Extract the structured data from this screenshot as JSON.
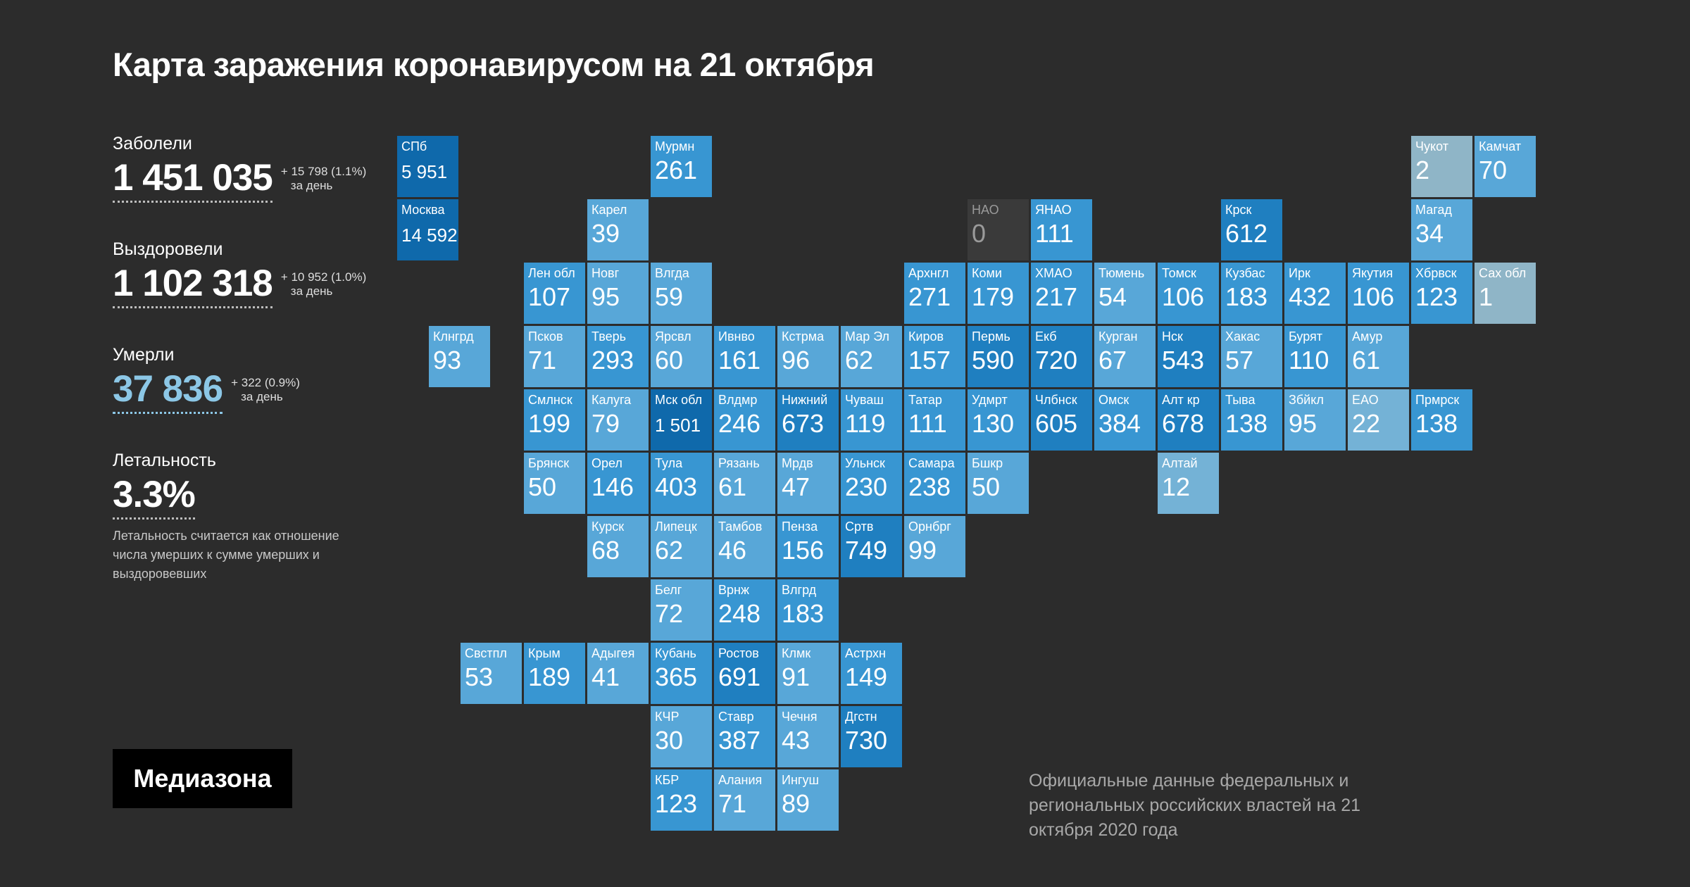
{
  "title": "Карта заражения коронавирусом на 21 октября",
  "stats": {
    "infected": {
      "label": "Заболели",
      "value": "1 451 035",
      "delta": "+ 15 798 (1.1%)",
      "per_day": "за день"
    },
    "recovered": {
      "label": "Выздоровели",
      "value": "1 102 318",
      "delta": "+ 10 952 (1.0%)",
      "per_day": "за день"
    },
    "deaths": {
      "label": "Умерли",
      "value": "37 836",
      "delta": "+ 322 (0.9%)",
      "per_day": "за день"
    },
    "lethality": {
      "label": "Летальность",
      "value": "3.3%"
    },
    "note": "Летальность считается как отношение числа умерших к сумме умерших и выздоровевших"
  },
  "logo": "Медиазона",
  "source": "Официальные данные федеральных и региональных российских властей на 21 октября 2020 года",
  "colors": {
    "background": "#2c2c2c",
    "scale": [
      "#8fb5c7",
      "#74b2d6",
      "#58a7d8",
      "#3896d2",
      "#1f7fc0",
      "#0f69ab"
    ],
    "empty": "#3a3a3a"
  },
  "regions": [
    {
      "name": "СПб",
      "value": "5 951",
      "col": 0,
      "row": 0,
      "level": 5
    },
    {
      "name": "Москва",
      "value": "14 592",
      "col": 0,
      "row": 1,
      "level": 5
    },
    {
      "name": "Мурмн",
      "value": "261",
      "col": 4,
      "row": 0,
      "level": 3
    },
    {
      "name": "Чукот",
      "value": "2",
      "col": 16,
      "row": 0,
      "level": 0
    },
    {
      "name": "Камчат",
      "value": "70",
      "col": 17,
      "row": 0,
      "level": 2
    },
    {
      "name": "Карел",
      "value": "39",
      "col": 3,
      "row": 1,
      "level": 2
    },
    {
      "name": "НАО",
      "value": "0",
      "col": 9,
      "row": 1,
      "level": -1
    },
    {
      "name": "ЯНАО",
      "value": "111",
      "col": 10,
      "row": 1,
      "level": 3
    },
    {
      "name": "Крск",
      "value": "612",
      "col": 13,
      "row": 1,
      "level": 4
    },
    {
      "name": "Магад",
      "value": "34",
      "col": 16,
      "row": 1,
      "level": 2
    },
    {
      "name": "Лен обл",
      "value": "107",
      "col": 2,
      "row": 2,
      "level": 3
    },
    {
      "name": "Новг",
      "value": "95",
      "col": 3,
      "row": 2,
      "level": 2
    },
    {
      "name": "Влгда",
      "value": "59",
      "col": 4,
      "row": 2,
      "level": 2
    },
    {
      "name": "Архнгл",
      "value": "271",
      "col": 8,
      "row": 2,
      "level": 3
    },
    {
      "name": "Коми",
      "value": "179",
      "col": 9,
      "row": 2,
      "level": 3
    },
    {
      "name": "ХМАО",
      "value": "217",
      "col": 10,
      "row": 2,
      "level": 3
    },
    {
      "name": "Тюмень",
      "value": "54",
      "col": 11,
      "row": 2,
      "level": 2
    },
    {
      "name": "Томск",
      "value": "106",
      "col": 12,
      "row": 2,
      "level": 3
    },
    {
      "name": "Кузбас",
      "value": "183",
      "col": 13,
      "row": 2,
      "level": 3
    },
    {
      "name": "Ирк",
      "value": "432",
      "col": 14,
      "row": 2,
      "level": 3
    },
    {
      "name": "Якутия",
      "value": "106",
      "col": 15,
      "row": 2,
      "level": 3
    },
    {
      "name": "Хбрвск",
      "value": "123",
      "col": 16,
      "row": 2,
      "level": 3
    },
    {
      "name": "Сах обл",
      "value": "1",
      "col": 17,
      "row": 2,
      "level": 0
    },
    {
      "name": "Клнгрд",
      "value": "93",
      "col": 0.5,
      "row": 3,
      "level": 2
    },
    {
      "name": "Псков",
      "value": "71",
      "col": 2,
      "row": 3,
      "level": 2
    },
    {
      "name": "Тверь",
      "value": "293",
      "col": 3,
      "row": 3,
      "level": 3
    },
    {
      "name": "Ярсвл",
      "value": "60",
      "col": 4,
      "row": 3,
      "level": 2
    },
    {
      "name": "Ивнво",
      "value": "161",
      "col": 5,
      "row": 3,
      "level": 3
    },
    {
      "name": "Кстрма",
      "value": "96",
      "col": 6,
      "row": 3,
      "level": 2
    },
    {
      "name": "Мар Эл",
      "value": "62",
      "col": 7,
      "row": 3,
      "level": 2
    },
    {
      "name": "Киров",
      "value": "157",
      "col": 8,
      "row": 3,
      "level": 3
    },
    {
      "name": "Пермь",
      "value": "590",
      "col": 9,
      "row": 3,
      "level": 4
    },
    {
      "name": "Екб",
      "value": "720",
      "col": 10,
      "row": 3,
      "level": 4
    },
    {
      "name": "Курган",
      "value": "67",
      "col": 11,
      "row": 3,
      "level": 2
    },
    {
      "name": "Нск",
      "value": "543",
      "col": 12,
      "row": 3,
      "level": 4
    },
    {
      "name": "Хакас",
      "value": "57",
      "col": 13,
      "row": 3,
      "level": 2
    },
    {
      "name": "Бурят",
      "value": "110",
      "col": 14,
      "row": 3,
      "level": 3
    },
    {
      "name": "Амур",
      "value": "61",
      "col": 15,
      "row": 3,
      "level": 2
    },
    {
      "name": "Смлнск",
      "value": "199",
      "col": 2,
      "row": 4,
      "level": 3
    },
    {
      "name": "Калуга",
      "value": "79",
      "col": 3,
      "row": 4,
      "level": 2
    },
    {
      "name": "Мск обл",
      "value": "1 501",
      "col": 4,
      "row": 4,
      "level": 5
    },
    {
      "name": "Влдмр",
      "value": "246",
      "col": 5,
      "row": 4,
      "level": 3
    },
    {
      "name": "Нижний",
      "value": "673",
      "col": 6,
      "row": 4,
      "level": 4
    },
    {
      "name": "Чуваш",
      "value": "119",
      "col": 7,
      "row": 4,
      "level": 3
    },
    {
      "name": "Татар",
      "value": "111",
      "col": 8,
      "row": 4,
      "level": 3
    },
    {
      "name": "Удмрт",
      "value": "130",
      "col": 9,
      "row": 4,
      "level": 3
    },
    {
      "name": "Члбнск",
      "value": "605",
      "col": 10,
      "row": 4,
      "level": 4
    },
    {
      "name": "Омск",
      "value": "384",
      "col": 11,
      "row": 4,
      "level": 3
    },
    {
      "name": "Алт кр",
      "value": "678",
      "col": 12,
      "row": 4,
      "level": 4
    },
    {
      "name": "Тыва",
      "value": "138",
      "col": 13,
      "row": 4,
      "level": 3
    },
    {
      "name": "Збйкл",
      "value": "95",
      "col": 14,
      "row": 4,
      "level": 2
    },
    {
      "name": "ЕАО",
      "value": "22",
      "col": 15,
      "row": 4,
      "level": 1
    },
    {
      "name": "Прмрск",
      "value": "138",
      "col": 16,
      "row": 4,
      "level": 3
    },
    {
      "name": "Брянск",
      "value": "50",
      "col": 2,
      "row": 5,
      "level": 2
    },
    {
      "name": "Орел",
      "value": "146",
      "col": 3,
      "row": 5,
      "level": 3
    },
    {
      "name": "Тула",
      "value": "403",
      "col": 4,
      "row": 5,
      "level": 3
    },
    {
      "name": "Рязань",
      "value": "61",
      "col": 5,
      "row": 5,
      "level": 2
    },
    {
      "name": "Мрдв",
      "value": "47",
      "col": 6,
      "row": 5,
      "level": 2
    },
    {
      "name": "Ульнск",
      "value": "230",
      "col": 7,
      "row": 5,
      "level": 3
    },
    {
      "name": "Самара",
      "value": "238",
      "col": 8,
      "row": 5,
      "level": 3
    },
    {
      "name": "Бшкр",
      "value": "50",
      "col": 9,
      "row": 5,
      "level": 2
    },
    {
      "name": "Алтай",
      "value": "12",
      "col": 12,
      "row": 5,
      "level": 1
    },
    {
      "name": "Курск",
      "value": "68",
      "col": 3,
      "row": 6,
      "level": 2
    },
    {
      "name": "Липецк",
      "value": "62",
      "col": 4,
      "row": 6,
      "level": 2
    },
    {
      "name": "Тамбов",
      "value": "46",
      "col": 5,
      "row": 6,
      "level": 2
    },
    {
      "name": "Пенза",
      "value": "156",
      "col": 6,
      "row": 6,
      "level": 3
    },
    {
      "name": "Сртв",
      "value": "749",
      "col": 7,
      "row": 6,
      "level": 4
    },
    {
      "name": "Орнбрг",
      "value": "99",
      "col": 8,
      "row": 6,
      "level": 2
    },
    {
      "name": "Белг",
      "value": "72",
      "col": 4,
      "row": 7,
      "level": 2
    },
    {
      "name": "Врнж",
      "value": "248",
      "col": 5,
      "row": 7,
      "level": 3
    },
    {
      "name": "Влгрд",
      "value": "183",
      "col": 6,
      "row": 7,
      "level": 3
    },
    {
      "name": "Свстпл",
      "value": "53",
      "col": 1,
      "row": 8,
      "level": 2
    },
    {
      "name": "Крым",
      "value": "189",
      "col": 2,
      "row": 8,
      "level": 3
    },
    {
      "name": "Адыгея",
      "value": "41",
      "col": 3,
      "row": 8,
      "level": 2
    },
    {
      "name": "Кубань",
      "value": "365",
      "col": 4,
      "row": 8,
      "level": 3
    },
    {
      "name": "Ростов",
      "value": "691",
      "col": 5,
      "row": 8,
      "level": 4
    },
    {
      "name": "Клмк",
      "value": "91",
      "col": 6,
      "row": 8,
      "level": 2
    },
    {
      "name": "Астрхн",
      "value": "149",
      "col": 7,
      "row": 8,
      "level": 3
    },
    {
      "name": "КЧР",
      "value": "30",
      "col": 4,
      "row": 9,
      "level": 2
    },
    {
      "name": "Ставр",
      "value": "387",
      "col": 5,
      "row": 9,
      "level": 3
    },
    {
      "name": "Чечня",
      "value": "43",
      "col": 6,
      "row": 9,
      "level": 2
    },
    {
      "name": "Дгстн",
      "value": "730",
      "col": 7,
      "row": 9,
      "level": 4
    },
    {
      "name": "КБР",
      "value": "123",
      "col": 4,
      "row": 10,
      "level": 3
    },
    {
      "name": "Алания",
      "value": "71",
      "col": 5,
      "row": 10,
      "level": 2
    },
    {
      "name": "Ингуш",
      "value": "89",
      "col": 6,
      "row": 10,
      "level": 2
    }
  ]
}
